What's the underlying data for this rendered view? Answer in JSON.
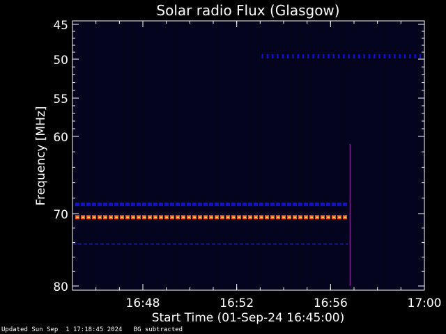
{
  "chart_data": {
    "type": "heatmap",
    "title": "Solar radio Flux (Glasgow)",
    "xlabel": "Start Time (01-Sep-24 16:45:00)",
    "ylabel": "Frequency [MHz]",
    "xlim": [
      "16:45",
      "17:00"
    ],
    "ylim": [
      45,
      80
    ],
    "x_ticks": [
      "16:48",
      "16:52",
      "16:56",
      "17:00"
    ],
    "y_ticks": [
      45,
      50,
      55,
      60,
      70,
      80
    ],
    "y_scale": "nonlinear",
    "colors": {
      "background": "#000000",
      "plot_bg": "#03031a",
      "low": "#1010c8",
      "mid": "#7a1a8a",
      "high": "#ff4a1a",
      "peak": "#ffd070"
    },
    "features": [
      {
        "kind": "banded-emission",
        "frequency": 68.8,
        "from": "16:45",
        "to": "16:56:45",
        "level": "low"
      },
      {
        "kind": "banded-emission",
        "frequency": 70.5,
        "from": "16:45",
        "to": "16:56:45",
        "level": "high"
      },
      {
        "kind": "faint-emission",
        "frequency": 74.2,
        "from": "16:45",
        "to": "16:56:45",
        "level": "faint"
      },
      {
        "kind": "dotted-emission",
        "frequency": 49.6,
        "from": "16:53",
        "to": "17:00",
        "level": "low"
      },
      {
        "kind": "burst",
        "time": "16:56:50",
        "from_frequency": 61,
        "to_frequency": 80,
        "level": "mid"
      }
    ]
  },
  "footer": {
    "updated": "Updated Sun Sep  1 17:18:45 2024",
    "note": "BG subtracted"
  }
}
